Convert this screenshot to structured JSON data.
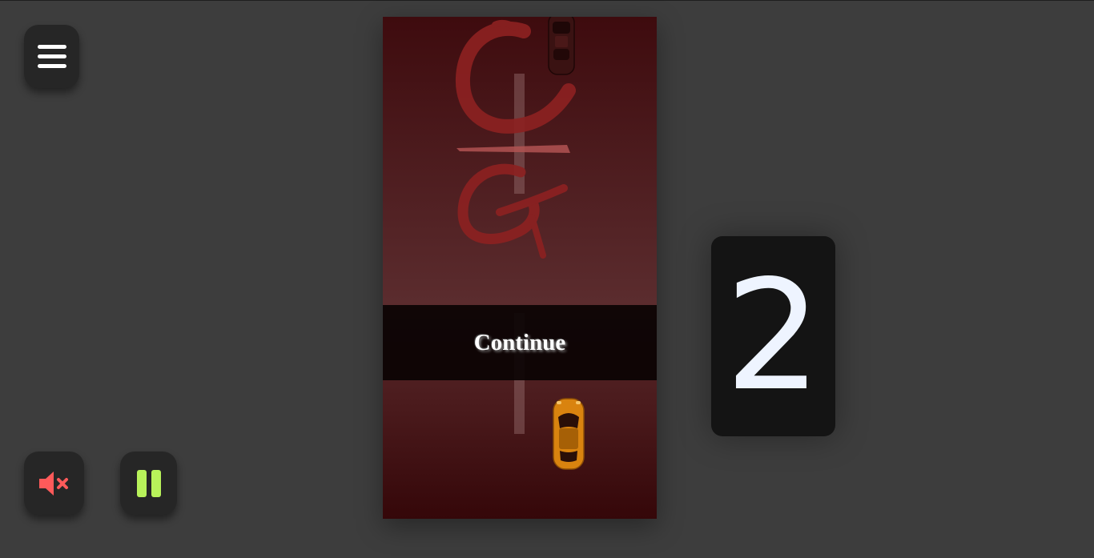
{
  "game": {
    "continue_label": "Continue",
    "countdown": "2"
  },
  "controls": {
    "menu_icon": "hamburger-menu-icon",
    "mute_icon": "speaker-muted-icon",
    "pause_icon": "pause-icon"
  },
  "colors": {
    "background": "#3d3d3d",
    "button_bg": "#262626",
    "mute_accent": "#ff5a5a",
    "pause_accent": "#b8f25a",
    "countdown_text": "#eef4ff",
    "logo": "#8c2121",
    "player_car": "#d9830f"
  }
}
